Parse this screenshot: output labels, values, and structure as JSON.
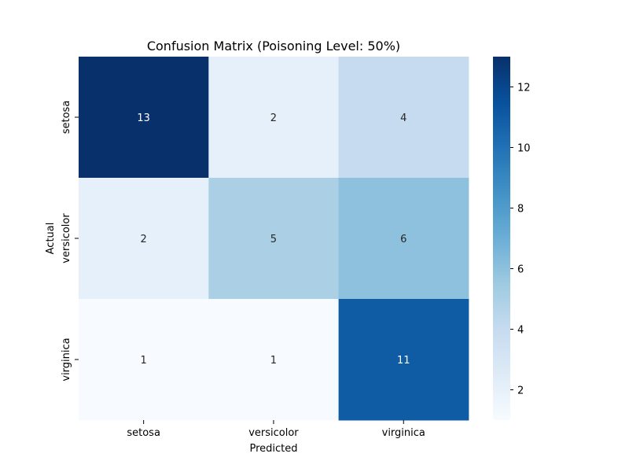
{
  "chart_data": {
    "type": "heatmap",
    "title": "Confusion Matrix (Poisoning Level: 50%)",
    "xlabel": "Predicted",
    "ylabel": "Actual",
    "x_categories": [
      "setosa",
      "versicolor",
      "virginica"
    ],
    "y_categories": [
      "setosa",
      "versicolor",
      "virginica"
    ],
    "values": [
      [
        13,
        2,
        4
      ],
      [
        2,
        5,
        6
      ],
      [
        1,
        1,
        11
      ]
    ],
    "colormap": "Blues",
    "vmin": 1,
    "vmax": 13,
    "colorbar_ticks": [
      2,
      4,
      6,
      8,
      10,
      12
    ],
    "grid": false
  }
}
